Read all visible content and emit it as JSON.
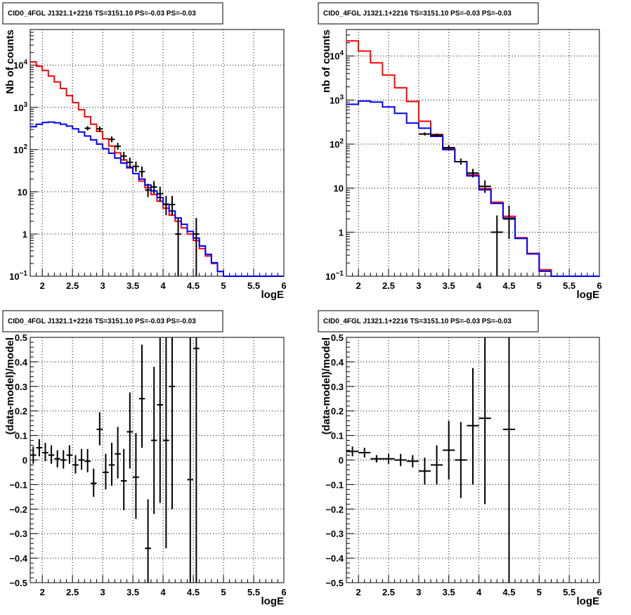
{
  "colors": {
    "data": "#000000",
    "model_total": "#ff0000",
    "model_component": "#0000ff",
    "grid": "#000000"
  },
  "chart_data": [
    {
      "type": "line",
      "subtype": "histogram-log",
      "title": "CID0_4FGL J1321.1+2216 TS=3151.10 PS=-0.03 PS=-0.03",
      "xlabel": "logE",
      "ylabel": "Nb of counts",
      "xlim": [
        1.8,
        6
      ],
      "ylim": [
        0.1,
        70000
      ],
      "ylog": true,
      "grid": true,
      "xticks": [
        "2",
        "2.5",
        "3",
        "3.5",
        "4",
        "4.5",
        "5",
        "5.5",
        "6"
      ],
      "yticks": [
        {
          "v": 0.1,
          "base": "10",
          "exp": "−1"
        },
        {
          "v": 1,
          "label": "1"
        },
        {
          "v": 10,
          "label": "10"
        },
        {
          "v": 100,
          "base": "10",
          "exp": "2"
        },
        {
          "v": 1000,
          "base": "10",
          "exp": "3"
        },
        {
          "v": 10000,
          "base": "10",
          "exp": "4"
        }
      ],
      "bin_edges": [
        1.8,
        1.9,
        2.0,
        2.1,
        2.2,
        2.3,
        2.4,
        2.5,
        2.6,
        2.7,
        2.8,
        2.9,
        3.0,
        3.1,
        3.2,
        3.3,
        3.4,
        3.5,
        3.6,
        3.7,
        3.8,
        3.9,
        4.0,
        4.1,
        4.2,
        4.3,
        4.4,
        4.5,
        4.6,
        4.7,
        4.8,
        4.9,
        5.0,
        5.1,
        5.2,
        5.3,
        5.4,
        5.5,
        5.6,
        5.7,
        5.8,
        5.9,
        6.0
      ],
      "series": [
        {
          "role": "model_total",
          "values": [
            12000,
            9500,
            7500,
            5500,
            4000,
            2800,
            1900,
            1300,
            880,
            600,
            400,
            270,
            180,
            122,
            84,
            57,
            39,
            27,
            18,
            12.5,
            8.6,
            6,
            4.1,
            2.8,
            2,
            1.4,
            1,
            0.7,
            0.45,
            0.3,
            0.2,
            0.13,
            0.1,
            0.1,
            0.1,
            0.1,
            0.1,
            0.1,
            0.1,
            0.1,
            0.1,
            0.1
          ]
        },
        {
          "role": "model_component",
          "values": [
            350,
            400,
            440,
            450,
            430,
            400,
            360,
            310,
            260,
            210,
            170,
            135,
            105,
            82,
            63,
            48,
            37,
            27,
            20,
            14.5,
            10.5,
            7.3,
            5.1,
            3.5,
            2.4,
            1.7,
            1.15,
            0.8,
            0.52,
            0.33,
            0.21,
            0.13,
            0.1,
            0.1,
            0.1,
            0.1,
            0.1,
            0.1,
            0.1,
            0.1,
            0.1,
            0.1
          ]
        }
      ],
      "points": [
        {
          "x": 2.75,
          "y": 320,
          "elo": 35,
          "ehi": 40
        },
        {
          "x": 2.95,
          "y": 310,
          "elo": 40,
          "ehi": 45
        },
        {
          "x": 3.15,
          "y": 175,
          "elo": 25,
          "ehi": 30
        },
        {
          "x": 3.25,
          "y": 120,
          "elo": 20,
          "ehi": 25
        },
        {
          "x": 3.35,
          "y": 70,
          "elo": 15,
          "ehi": 18
        },
        {
          "x": 3.45,
          "y": 50,
          "elo": 12,
          "ehi": 15
        },
        {
          "x": 3.55,
          "y": 40,
          "elo": 10,
          "ehi": 12
        },
        {
          "x": 3.65,
          "y": 30,
          "elo": 8,
          "ehi": 10
        },
        {
          "x": 3.75,
          "y": 11,
          "elo": 3.5,
          "ehi": 4.5
        },
        {
          "x": 3.85,
          "y": 13,
          "elo": 4,
          "ehi": 5
        },
        {
          "x": 3.95,
          "y": 9,
          "elo": 3.2,
          "ehi": 4.2
        },
        {
          "x": 4.05,
          "y": 5,
          "elo": 2.2,
          "ehi": 3
        },
        {
          "x": 4.15,
          "y": 5,
          "elo": 2.2,
          "ehi": 3
        },
        {
          "x": 4.25,
          "y": 1,
          "elo": 0.9,
          "ehi": 1.4
        },
        {
          "x": 4.55,
          "y": 1,
          "elo": 0.9,
          "ehi": 1.4
        }
      ]
    },
    {
      "type": "line",
      "subtype": "histogram-log",
      "title": "CID0_4FGL J1321.1+2216 TS=3151.10 PS=-0.03 PS=-0.03",
      "xlabel": "logE",
      "ylabel": "nb of counts",
      "xlim": [
        1.8,
        6
      ],
      "ylim": [
        0.1,
        40000
      ],
      "ylog": true,
      "grid": true,
      "xticks": [
        "2",
        "2.5",
        "3",
        "3.5",
        "4",
        "4.5",
        "5",
        "5.5",
        "6"
      ],
      "yticks": [
        {
          "v": 0.1,
          "base": "10",
          "exp": "−1"
        },
        {
          "v": 1,
          "label": "1"
        },
        {
          "v": 10,
          "label": "10"
        },
        {
          "v": 100,
          "base": "10",
          "exp": "2"
        },
        {
          "v": 1000,
          "base": "10",
          "exp": "3"
        },
        {
          "v": 10000,
          "base": "10",
          "exp": "4"
        }
      ],
      "bin_edges": [
        1.8,
        2.0,
        2.2,
        2.4,
        2.6,
        2.8,
        3.0,
        3.2,
        3.4,
        3.6,
        3.8,
        4.0,
        4.2,
        4.4,
        4.6,
        4.8,
        5.0,
        5.2,
        5.4,
        5.6,
        5.8,
        6.0
      ],
      "series": [
        {
          "role": "model_total",
          "values": [
            22000,
            13000,
            7000,
            3700,
            1900,
            930,
            330,
            165,
            80,
            40,
            20,
            9.8,
            4.8,
            2.3,
            0.75,
            0.33,
            0.14,
            0.1,
            0.1,
            0.1,
            0.1
          ]
        },
        {
          "role": "model_component",
          "values": [
            800,
            950,
            900,
            700,
            500,
            300,
            230,
            150,
            75,
            40,
            19,
            9.2,
            4.5,
            2.1,
            0.72,
            0.32,
            0.13,
            0.1,
            0.1,
            0.1,
            0.1
          ]
        }
      ],
      "points": [
        {
          "x": 3.1,
          "y": 170,
          "elo": 13,
          "ehi": 14
        },
        {
          "x": 3.3,
          "y": 160,
          "elo": 13,
          "ehi": 14
        },
        {
          "x": 3.5,
          "y": 83,
          "elo": 9,
          "ehi": 10
        },
        {
          "x": 3.7,
          "y": 40,
          "elo": 6,
          "ehi": 7
        },
        {
          "x": 3.9,
          "y": 22,
          "elo": 4.5,
          "ehi": 5.5
        },
        {
          "x": 4.1,
          "y": 11,
          "elo": 3.2,
          "ehi": 4
        },
        {
          "x": 4.3,
          "y": 1,
          "elo": 0.9,
          "ehi": 1.4
        },
        {
          "x": 4.5,
          "y": 2,
          "elo": 1.3,
          "ehi": 2
        }
      ]
    },
    {
      "type": "scatter",
      "subtype": "residuals",
      "title": "CID0_4FGL J1321.1+2216 TS=3151.10 PS=-0.03 PS=-0.03",
      "xlabel": "logE",
      "ylabel": "(data-model)/model",
      "xlim": [
        1.8,
        6
      ],
      "ylim": [
        -0.5,
        0.5
      ],
      "ylog": false,
      "grid": true,
      "xticks": [
        "2",
        "2.5",
        "3",
        "3.5",
        "4",
        "4.5",
        "5",
        "5.5",
        "6"
      ],
      "yticks": [
        {
          "v": -0.5,
          "label": "−0.5"
        },
        {
          "v": -0.4,
          "label": "−0.4"
        },
        {
          "v": -0.3,
          "label": "−0.3"
        },
        {
          "v": -0.2,
          "label": "−0.2"
        },
        {
          "v": -0.1,
          "label": "−0.1"
        },
        {
          "v": 0,
          "label": "0"
        },
        {
          "v": 0.1,
          "label": "0.1"
        },
        {
          "v": 0.2,
          "label": "0.2"
        },
        {
          "v": 0.3,
          "label": "0.3"
        },
        {
          "v": 0.4,
          "label": "0.4"
        },
        {
          "v": 0.5,
          "label": "0.5"
        }
      ],
      "xhalfwidth": 0.05,
      "points": [
        {
          "x": 1.85,
          "y": 0.02,
          "elo": 0.035,
          "ehi": 0.035
        },
        {
          "x": 1.95,
          "y": 0.05,
          "elo": 0.035,
          "ehi": 0.035
        },
        {
          "x": 2.05,
          "y": 0.03,
          "elo": 0.035,
          "ehi": 0.04
        },
        {
          "x": 2.15,
          "y": 0.02,
          "elo": 0.035,
          "ehi": 0.04
        },
        {
          "x": 2.25,
          "y": 0.005,
          "elo": 0.035,
          "ehi": 0.035
        },
        {
          "x": 2.35,
          "y": 0.0,
          "elo": 0.035,
          "ehi": 0.04
        },
        {
          "x": 2.45,
          "y": 0.02,
          "elo": 0.035,
          "ehi": 0.04
        },
        {
          "x": 2.55,
          "y": -0.02,
          "elo": 0.035,
          "ehi": 0.04
        },
        {
          "x": 2.65,
          "y": 0.0,
          "elo": 0.04,
          "ehi": 0.045
        },
        {
          "x": 2.75,
          "y": -0.005,
          "elo": 0.045,
          "ehi": 0.05
        },
        {
          "x": 2.85,
          "y": -0.095,
          "elo": 0.055,
          "ehi": 0.06
        },
        {
          "x": 2.95,
          "y": 0.125,
          "elo": 0.065,
          "ehi": 0.07
        },
        {
          "x": 3.05,
          "y": -0.05,
          "elo": 0.07,
          "ehi": 0.075
        },
        {
          "x": 3.15,
          "y": -0.02,
          "elo": 0.085,
          "ehi": 0.09
        },
        {
          "x": 3.25,
          "y": 0.025,
          "elo": 0.1,
          "ehi": 0.11
        },
        {
          "x": 3.35,
          "y": -0.085,
          "elo": 0.12,
          "ehi": 0.13
        },
        {
          "x": 3.45,
          "y": 0.115,
          "elo": 0.15,
          "ehi": 0.16
        },
        {
          "x": 3.55,
          "y": -0.07,
          "elo": 0.17,
          "ehi": 0.18
        },
        {
          "x": 3.65,
          "y": 0.25,
          "elo": 0.2,
          "ehi": 0.22
        },
        {
          "x": 3.75,
          "y": -0.36,
          "elo": 0.2,
          "ehi": 0.2
        },
        {
          "x": 3.85,
          "y": 0.08,
          "elo": 0.3,
          "ehi": 0.3
        },
        {
          "x": 3.95,
          "y": 0.225,
          "elo": 0.4,
          "ehi": 0.4
        },
        {
          "x": 4.05,
          "y": 0.08,
          "elo": 0.44,
          "ehi": 0.44
        },
        {
          "x": 4.15,
          "y": 0.3,
          "elo": 0.5,
          "ehi": 0.5
        },
        {
          "x": 4.45,
          "y": -0.08,
          "elo": 0.5,
          "ehi": 0.6
        },
        {
          "x": 4.55,
          "y": 0.455,
          "elo": 1.0,
          "ehi": 1.0
        }
      ]
    },
    {
      "type": "scatter",
      "subtype": "residuals",
      "title": "CID0_4FGL J1321.1+2216 TS=3151.10 PS=-0.03 PS=-0.03",
      "xlabel": "logE",
      "ylabel": "(data-model)/model",
      "xlim": [
        1.8,
        6
      ],
      "ylim": [
        -0.5,
        0.5
      ],
      "ylog": false,
      "grid": true,
      "xticks": [
        "2",
        "2.5",
        "3",
        "3.5",
        "4",
        "4.5",
        "5",
        "5.5",
        "6"
      ],
      "yticks": [
        {
          "v": -0.5,
          "label": "−0.5"
        },
        {
          "v": -0.4,
          "label": "−0.4"
        },
        {
          "v": -0.3,
          "label": "−0.3"
        },
        {
          "v": -0.2,
          "label": "−0.2"
        },
        {
          "v": -0.1,
          "label": "−0.1"
        },
        {
          "v": 0,
          "label": "0"
        },
        {
          "v": 0.1,
          "label": "0.1"
        },
        {
          "v": 0.2,
          "label": "0.2"
        },
        {
          "v": 0.3,
          "label": "0.3"
        },
        {
          "v": 0.4,
          "label": "0.4"
        },
        {
          "v": 0.5,
          "label": "0.5"
        }
      ],
      "xhalfwidth": 0.1,
      "points": [
        {
          "x": 1.9,
          "y": 0.035,
          "elo": 0.02,
          "ehi": 0.02
        },
        {
          "x": 2.1,
          "y": 0.03,
          "elo": 0.02,
          "ehi": 0.02
        },
        {
          "x": 2.3,
          "y": 0.005,
          "elo": 0.015,
          "ehi": 0.015
        },
        {
          "x": 2.5,
          "y": 0.005,
          "elo": 0.02,
          "ehi": 0.02
        },
        {
          "x": 2.7,
          "y": 0.0,
          "elo": 0.025,
          "ehi": 0.025
        },
        {
          "x": 2.9,
          "y": -0.005,
          "elo": 0.025,
          "ehi": 0.025
        },
        {
          "x": 3.1,
          "y": -0.045,
          "elo": 0.055,
          "ehi": 0.055
        },
        {
          "x": 3.3,
          "y": -0.02,
          "elo": 0.08,
          "ehi": 0.08
        },
        {
          "x": 3.5,
          "y": 0.04,
          "elo": 0.12,
          "ehi": 0.12
        },
        {
          "x": 3.7,
          "y": 0.0,
          "elo": 0.155,
          "ehi": 0.155
        },
        {
          "x": 3.9,
          "y": 0.14,
          "elo": 0.24,
          "ehi": 0.235
        },
        {
          "x": 4.1,
          "y": 0.17,
          "elo": 0.35,
          "ehi": 0.35
        },
        {
          "x": 4.5,
          "y": 0.125,
          "elo": 0.7,
          "ehi": 0.7
        }
      ]
    }
  ]
}
